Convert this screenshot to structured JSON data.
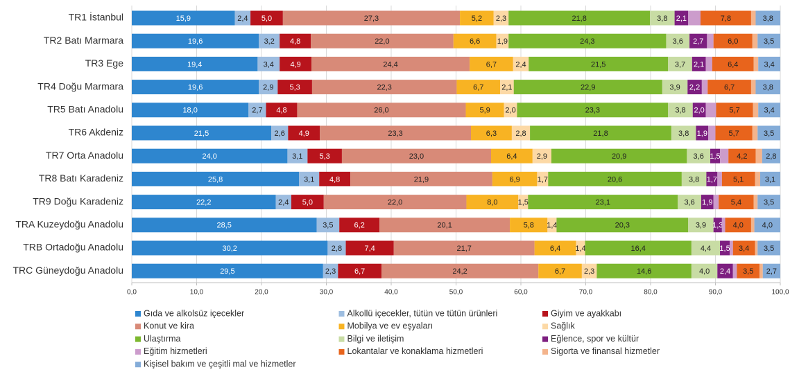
{
  "chart_data": {
    "type": "stacked-bar-horizontal",
    "categories": [
      "TR1 İstanbul",
      "TR2 Batı Marmara",
      "TR3 Ege",
      "TR4 Doğu Marmara",
      "TR5 Batı Anadolu",
      "TR6 Akdeniz",
      "TR7 Orta Anadolu",
      "TR8 Batı Karadeniz",
      "TR9 Doğu Karadeniz",
      "TRA Kuzeydoğu Anadolu",
      "TRB Ortadoğu Anadolu",
      "TRC Güneydoğu Anadolu"
    ],
    "series": [
      {
        "name": "Gıda ve alkolsüz içecekler",
        "color": "#2e86cf",
        "label_color": "#ffffff",
        "values": [
          15.9,
          19.6,
          19.4,
          19.6,
          18.0,
          21.5,
          24.0,
          25.8,
          22.2,
          28.5,
          30.2,
          29.5
        ],
        "value_labels": [
          "15,9",
          "19,6",
          "19,4",
          "19,6",
          "18,0",
          "21,5",
          "24,0",
          "25,8",
          "22,2",
          "28,5",
          "30,2",
          "29,5"
        ]
      },
      {
        "name": "Alkollü içecekler, tütün ve tütün ürünleri",
        "color": "#9dbde0",
        "label_color": "#222222",
        "values": [
          2.4,
          3.2,
          3.4,
          2.9,
          2.7,
          2.6,
          3.1,
          3.1,
          2.4,
          3.5,
          2.8,
          2.3
        ],
        "value_labels": [
          "2,4",
          "3,2",
          "3,4",
          "2,9",
          "2,7",
          "2,6",
          "3,1",
          "3,1",
          "2,4",
          "3,5",
          "2,8",
          "2,3"
        ]
      },
      {
        "name": "Giyim ve ayakkabı",
        "color": "#b8141c",
        "label_color": "#ffffff",
        "values": [
          5.0,
          4.8,
          4.9,
          5.3,
          4.8,
          4.9,
          5.3,
          4.8,
          5.0,
          6.2,
          7.4,
          6.7
        ],
        "value_labels": [
          "5,0",
          "4,8",
          "4,9",
          "5,3",
          "4,8",
          "4,9",
          "5,3",
          "4,8",
          "5,0",
          "6,2",
          "7,4",
          "6,7"
        ]
      },
      {
        "name": "Konut ve kira",
        "color": "#d88a78",
        "label_color": "#222222",
        "values": [
          27.3,
          22.0,
          24.4,
          22.3,
          26.0,
          23.3,
          23.0,
          21.9,
          22.0,
          20.1,
          21.7,
          24.2
        ],
        "value_labels": [
          "27,3",
          "22,0",
          "24,4",
          "22,3",
          "26,0",
          "23,3",
          "23,0",
          "21,9",
          "22,0",
          "20,1",
          "21,7",
          "24,2"
        ]
      },
      {
        "name": "Mobilya ve ev eşyaları",
        "color": "#f8b323",
        "label_color": "#222222",
        "values": [
          5.2,
          6.6,
          6.7,
          6.7,
          5.9,
          6.3,
          6.4,
          6.9,
          8.0,
          5.8,
          6.4,
          6.7
        ],
        "value_labels": [
          "5,2",
          "6,6",
          "6,7",
          "6,7",
          "5,9",
          "6,3",
          "6,4",
          "6,9",
          "8,0",
          "5,8",
          "6,4",
          "6,7"
        ]
      },
      {
        "name": "Sağlık",
        "color": "#fcd9a6",
        "label_color": "#222222",
        "values": [
          2.3,
          1.9,
          2.4,
          2.1,
          2.0,
          2.8,
          2.9,
          1.7,
          1.5,
          1.4,
          1.4,
          2.3
        ],
        "value_labels": [
          "2,3",
          "1,9",
          "2,4",
          "2,1",
          "2,0",
          "2,8",
          "2,9",
          "1,7",
          "1,5",
          "1,4",
          "1,4",
          "2,3"
        ]
      },
      {
        "name": "Ulaştırma",
        "color": "#7cb82f",
        "label_color": "#222222",
        "values": [
          21.8,
          24.3,
          21.5,
          22.9,
          23.3,
          21.8,
          20.9,
          20.6,
          23.1,
          20.3,
          16.4,
          14.6
        ],
        "value_labels": [
          "21,8",
          "24,3",
          "21,5",
          "22,9",
          "23,3",
          "21,8",
          "20,9",
          "20,6",
          "23,1",
          "20,3",
          "16,4",
          "14,6"
        ]
      },
      {
        "name": "Bilgi ve iletişim",
        "color": "#c8dca4",
        "label_color": "#222222",
        "values": [
          3.8,
          3.6,
          3.7,
          3.9,
          3.8,
          3.8,
          3.6,
          3.8,
          3.6,
          3.9,
          4.4,
          4.0
        ],
        "value_labels": [
          "3,8",
          "3,6",
          "3,7",
          "3,9",
          "3,8",
          "3,8",
          "3,6",
          "3,8",
          "3,6",
          "3,9",
          "4,4",
          "4,0"
        ]
      },
      {
        "name": "Eğlence, spor ve kültür",
        "color": "#7d1f80",
        "label_color": "#ffffff",
        "values": [
          2.1,
          2.7,
          2.1,
          2.2,
          2.0,
          1.9,
          1.5,
          1.7,
          1.9,
          1.3,
          1.5,
          2.4
        ],
        "value_labels": [
          "2,1",
          "2,7",
          "2,1",
          "2,2",
          "2,0",
          "1,9",
          "1,5",
          "1,7",
          "1,9",
          "1,3",
          "1,5",
          "2,4"
        ]
      },
      {
        "name": "Eğitim hizmetleri",
        "color": "#cc9ccc",
        "values": [
          1.9,
          1.0,
          1.0,
          0.9,
          1.6,
          1.1,
          1.3,
          0.7,
          0.8,
          0.5,
          0.5,
          0.6
        ]
      },
      {
        "name": "Lokantalar ve konaklama hizmetleri",
        "color": "#e8641c",
        "label_color": "#222222",
        "values": [
          7.8,
          6.0,
          6.4,
          6.7,
          5.7,
          5.7,
          4.2,
          5.1,
          5.4,
          4.0,
          3.4,
          3.5
        ],
        "value_labels": [
          "7,8",
          "6,0",
          "6,4",
          "6,7",
          "5,7",
          "5,7",
          "4,2",
          "5,1",
          "5,4",
          "4,0",
          "3,4",
          "3,5"
        ]
      },
      {
        "name": "Sigorta ve finansal hizmetler",
        "color": "#f4b48c",
        "values": [
          0.7,
          0.8,
          0.7,
          0.7,
          0.8,
          0.8,
          1.0,
          0.8,
          0.6,
          0.5,
          0.4,
          0.5
        ]
      },
      {
        "name": "Kişisel bakım ve çeşitli mal ve hizmetler",
        "color": "#84acd8",
        "label_color": "#222222",
        "values": [
          3.8,
          3.5,
          3.4,
          3.8,
          3.4,
          3.5,
          2.8,
          3.1,
          3.5,
          4.0,
          3.5,
          2.7
        ],
        "value_labels": [
          "3,8",
          "3,5",
          "3,4",
          "3,8",
          "3,4",
          "3,5",
          "2,8",
          "3,1",
          "3,5",
          "4,0",
          "3,5",
          "2,7"
        ]
      }
    ],
    "xlim": [
      0,
      100
    ],
    "xticks": [
      {
        "value": 0,
        "label": "0,0"
      },
      {
        "value": 10,
        "label": "10,0"
      },
      {
        "value": 20,
        "label": "20,0"
      },
      {
        "value": 30,
        "label": "30,0"
      },
      {
        "value": 40,
        "label": "40,0"
      },
      {
        "value": 50,
        "label": "50,0"
      },
      {
        "value": 60,
        "label": "60,0"
      },
      {
        "value": 70,
        "label": "70,0"
      },
      {
        "value": 80,
        "label": "80,0"
      },
      {
        "value": 90,
        "label": "90,0"
      },
      {
        "value": 100,
        "label": "100,0"
      }
    ],
    "grid": true
  }
}
